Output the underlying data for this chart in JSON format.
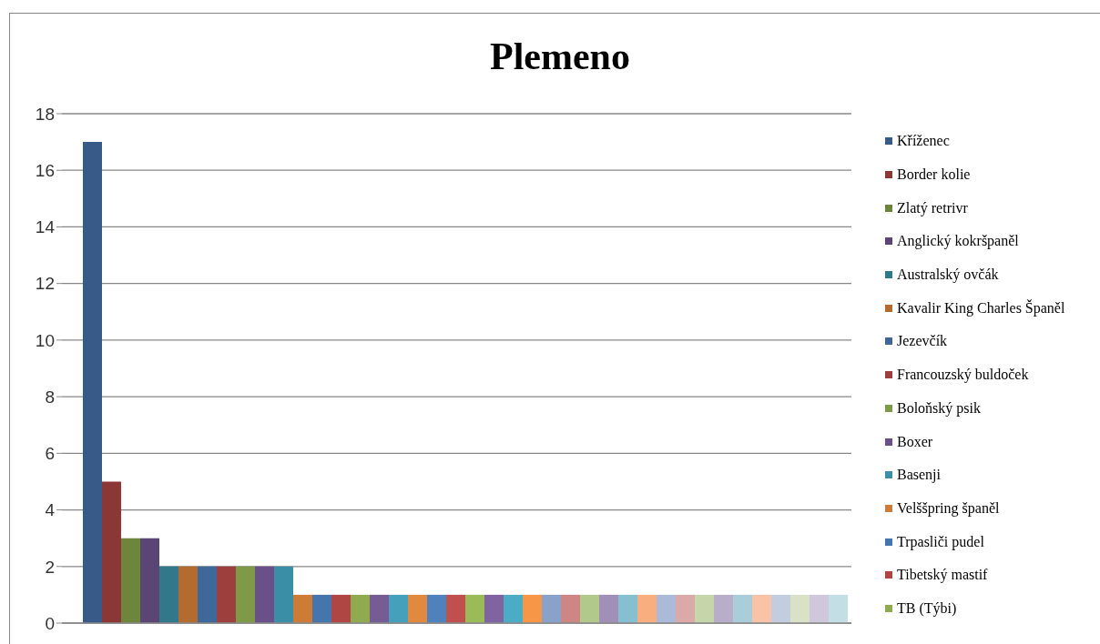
{
  "chart_data": {
    "type": "bar",
    "title": "Plemeno",
    "categories": [
      null
    ],
    "series": [
      {
        "name": "Kříženec",
        "color": "#375a88",
        "values": [
          17
        ]
      },
      {
        "name": "Border kolie",
        "color": "#8a3735",
        "values": [
          5
        ]
      },
      {
        "name": "Zlatý retrivr",
        "color": "#6d853c",
        "values": [
          3
        ]
      },
      {
        "name": "Anglický kokršpaněl",
        "color": "#5a4574",
        "values": [
          3
        ]
      },
      {
        "name": "Australský ovčák",
        "color": "#31788b",
        "values": [
          2
        ]
      },
      {
        "name": "Kavalir King Charles Španěl",
        "color": "#b46b2f",
        "values": [
          2
        ]
      },
      {
        "name": "Jezevčík",
        "color": "#3f689a",
        "values": [
          2
        ]
      },
      {
        "name": "Francouzský buldoček",
        "color": "#9d3f3d",
        "values": [
          2
        ]
      },
      {
        "name": "Boloňský psik",
        "color": "#7e9a48",
        "values": [
          2
        ]
      },
      {
        "name": "Boxer",
        "color": "#6a5089",
        "values": [
          2
        ]
      },
      {
        "name": "Basenji",
        "color": "#3a8ea6",
        "values": [
          2
        ]
      },
      {
        "name": "Velššpring španěl",
        "color": "#ce7b37",
        "values": [
          1
        ]
      },
      {
        "name": "Trpasliči pudel",
        "color": "#4674ad",
        "values": [
          1
        ]
      },
      {
        "name": "Tibetský mastif",
        "color": "#af4644",
        "values": [
          1
        ]
      },
      {
        "name": "TB (Týbi)",
        "color": "#8faa4f",
        "values": [
          1
        ]
      },
      {
        "color": "#775b94",
        "values": [
          1
        ]
      },
      {
        "color": "#45a0bc",
        "values": [
          1
        ]
      },
      {
        "color": "#e0893f",
        "values": [
          1
        ]
      },
      {
        "color": "#4f81bd",
        "values": [
          1
        ]
      },
      {
        "color": "#c0504d",
        "values": [
          1
        ]
      },
      {
        "color": "#9bbb59",
        "values": [
          1
        ]
      },
      {
        "color": "#8064a2",
        "values": [
          1
        ]
      },
      {
        "color": "#4bacc6",
        "values": [
          1
        ]
      },
      {
        "color": "#f79646",
        "values": [
          1
        ]
      },
      {
        "color": "#8aa1c9",
        "values": [
          1
        ]
      },
      {
        "color": "#cd8684",
        "values": [
          1
        ]
      },
      {
        "color": "#b1c98a",
        "values": [
          1
        ]
      },
      {
        "color": "#a090b7",
        "values": [
          1
        ]
      },
      {
        "color": "#85bfd2",
        "values": [
          1
        ]
      },
      {
        "color": "#f8ae7f",
        "values": [
          1
        ]
      },
      {
        "color": "#abbad8",
        "values": [
          1
        ]
      },
      {
        "color": "#daa9a8",
        "values": [
          1
        ]
      },
      {
        "color": "#c6d6ab",
        "values": [
          1
        ]
      },
      {
        "color": "#b8aec9",
        "values": [
          1
        ]
      },
      {
        "color": "#a9ceda",
        "values": [
          1
        ]
      },
      {
        "color": "#f9c3a8",
        "values": [
          1
        ]
      },
      {
        "color": "#c2cee0",
        "values": [
          1
        ]
      },
      {
        "color": "#d9e2c6",
        "values": [
          1
        ]
      },
      {
        "color": "#cfc8dc",
        "values": [
          1
        ]
      },
      {
        "color": "#c4dee6",
        "values": [
          1
        ]
      }
    ],
    "ylim": [
      0,
      18
    ],
    "yticks": [
      0,
      2,
      4,
      6,
      8,
      10,
      12,
      14,
      16,
      18
    ],
    "grid": "y",
    "legend": "right"
  }
}
